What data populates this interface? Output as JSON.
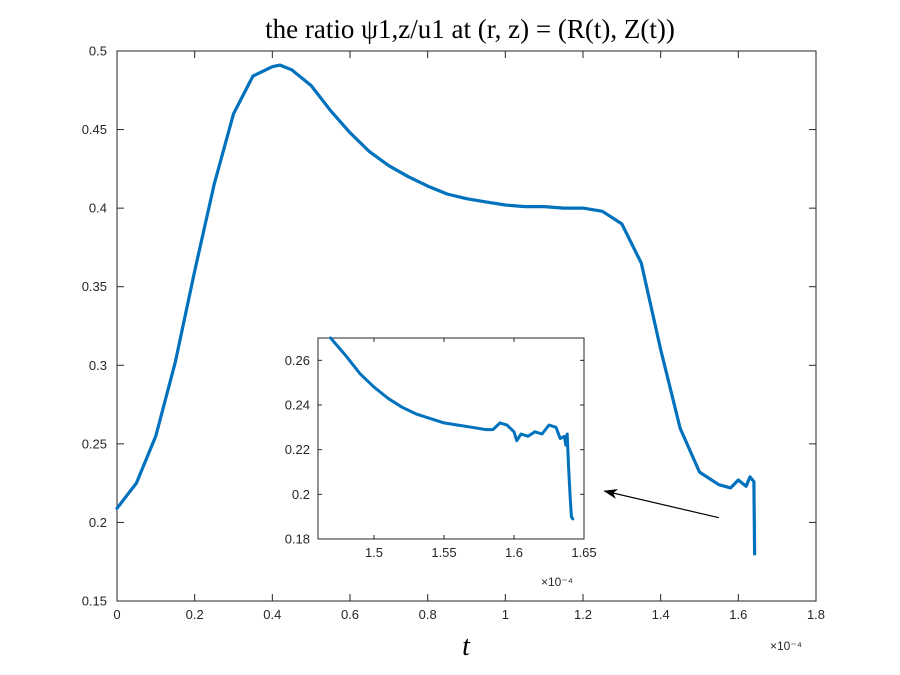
{
  "chart_data": [
    {
      "type": "line",
      "title": "the ratio ψ1,z/u1 at (r, z) = (R(t), Z(t))",
      "xlabel": "t",
      "ylabel": "",
      "x_exponent_label": "×10⁻⁴",
      "xlim": [
        0,
        1.8
      ],
      "ylim": [
        0.15,
        0.5
      ],
      "xticks": [
        "0",
        "0.2",
        "0.4",
        "0.6",
        "0.8",
        "1",
        "1.2",
        "1.4",
        "1.6",
        "1.8"
      ],
      "yticks": [
        "0.15",
        "0.2",
        "0.25",
        "0.3",
        "0.35",
        "0.4",
        "0.45",
        "0.5"
      ],
      "grid": false,
      "color": "#0072BD",
      "series": [
        {
          "x": [
            0,
            0.05,
            0.1,
            0.15,
            0.2,
            0.25,
            0.3,
            0.35,
            0.4,
            0.42,
            0.45,
            0.5,
            0.55,
            0.6,
            0.65,
            0.7,
            0.75,
            0.8,
            0.85,
            0.9,
            0.95,
            1.0,
            1.05,
            1.1,
            1.15,
            1.2,
            1.25,
            1.3,
            1.35,
            1.4,
            1.45,
            1.5,
            1.55,
            1.58,
            1.6,
            1.62,
            1.63,
            1.64,
            1.641,
            1.642
          ],
          "y": [
            0.209,
            0.225,
            0.255,
            0.302,
            0.36,
            0.415,
            0.46,
            0.484,
            0.49,
            0.491,
            0.488,
            0.478,
            0.462,
            0.448,
            0.436,
            0.427,
            0.42,
            0.414,
            0.409,
            0.406,
            0.404,
            0.402,
            0.401,
            0.401,
            0.4,
            0.4,
            0.398,
            0.39,
            0.365,
            0.31,
            0.26,
            0.232,
            0.224,
            0.222,
            0.227,
            0.223,
            0.229,
            0.226,
            0.2,
            0.18
          ]
        }
      ],
      "annotations": [
        {
          "type": "arrow",
          "from": [
            1.55,
            0.203
          ],
          "to": [
            1.255,
            0.22
          ]
        }
      ]
    },
    {
      "type": "line",
      "title": "",
      "xlabel": "",
      "ylabel": "",
      "x_exponent_label": "×10⁻⁴",
      "xlim": [
        1.46,
        1.65
      ],
      "ylim": [
        0.18,
        0.27
      ],
      "xticks": [
        "1.5",
        "1.55",
        "1.6",
        "1.65"
      ],
      "yticks": [
        "0.18",
        "0.2",
        "0.22",
        "0.24",
        "0.26"
      ],
      "grid": false,
      "color": "#0072BD",
      "series": [
        {
          "x": [
            1.469,
            1.48,
            1.49,
            1.5,
            1.51,
            1.52,
            1.53,
            1.54,
            1.55,
            1.56,
            1.57,
            1.58,
            1.585,
            1.59,
            1.595,
            1.6,
            1.602,
            1.605,
            1.61,
            1.615,
            1.62,
            1.625,
            1.63,
            1.633,
            1.636,
            1.637,
            1.638,
            1.639,
            1.64,
            1.641,
            1.642
          ],
          "y": [
            0.27,
            0.262,
            0.254,
            0.248,
            0.243,
            0.239,
            0.236,
            0.234,
            0.232,
            0.231,
            0.23,
            0.229,
            0.229,
            0.232,
            0.231,
            0.228,
            0.224,
            0.227,
            0.226,
            0.228,
            0.227,
            0.231,
            0.23,
            0.225,
            0.226,
            0.222,
            0.227,
            0.212,
            0.2,
            0.19,
            0.189
          ]
        }
      ]
    }
  ]
}
